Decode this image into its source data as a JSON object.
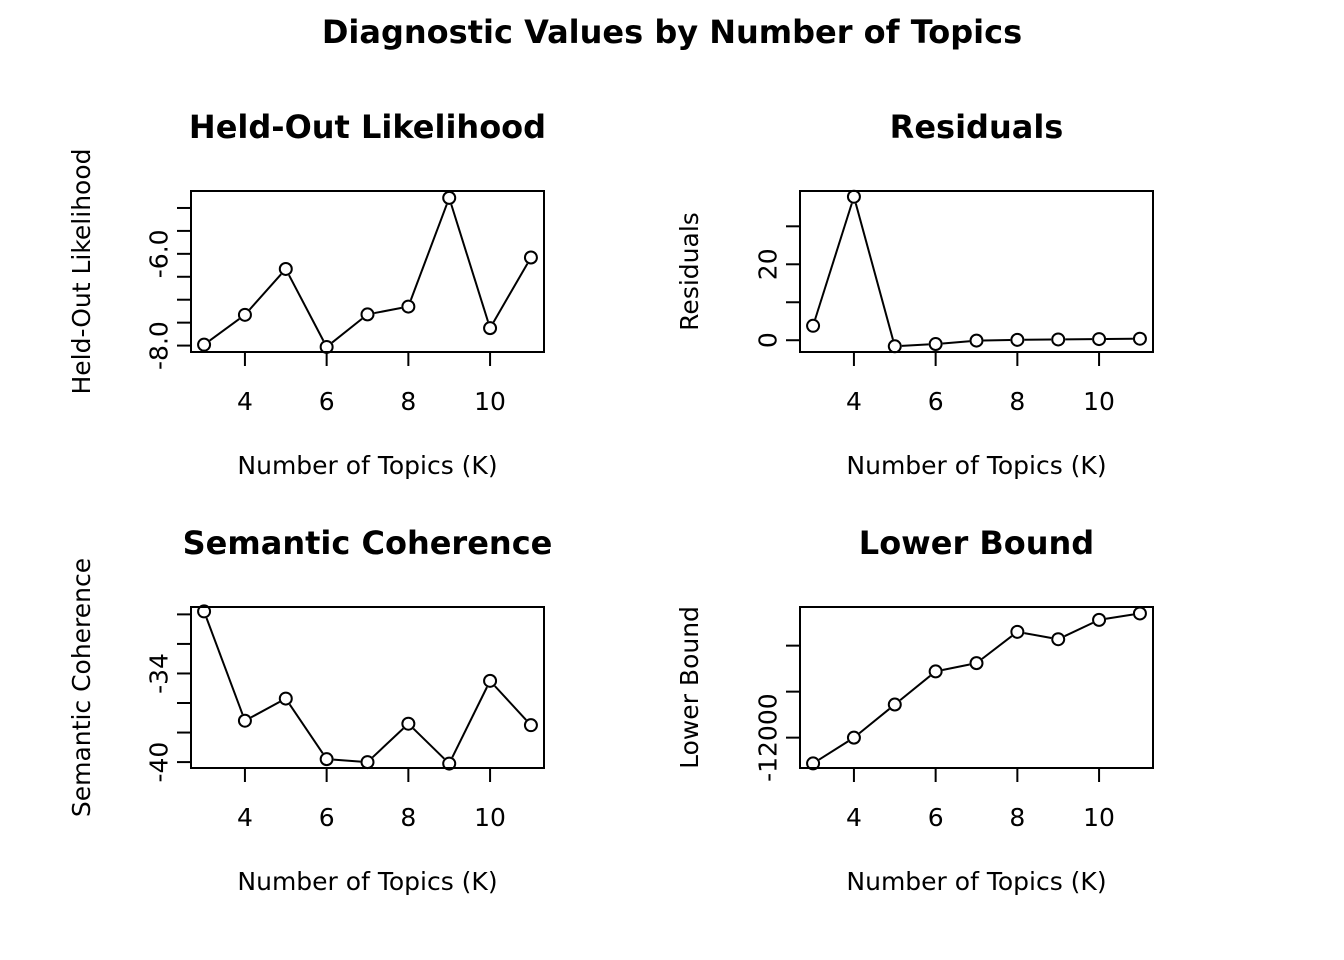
{
  "figure": {
    "title": "Diagnostic Values by Number of Topics"
  },
  "chart_data": [
    {
      "type": "line",
      "title": "Held-Out Likelihood",
      "xlabel": "Number of Topics (K)",
      "ylabel": "Held-Out Likelihood",
      "x": [
        3,
        4,
        5,
        6,
        7,
        8,
        9,
        10,
        11
      ],
      "values": [
        -7.98,
        -7.33,
        -6.33,
        -8.03,
        -7.32,
        -7.15,
        -4.78,
        -7.62,
        -6.08
      ],
      "xlim": [
        2.68,
        11.32
      ],
      "ylim": [
        -8.14,
        -4.63
      ],
      "xticks": [
        4,
        6,
        8,
        10
      ],
      "xtick_labels": [
        "4",
        "6",
        "8",
        "10"
      ],
      "yticks": [
        -8.0,
        -7.5,
        -7.0,
        -6.5,
        -6.0,
        -5.5,
        -5.0
      ],
      "ytick_labels": [
        "-8.0",
        "",
        "",
        "",
        "-6.0",
        "",
        ""
      ],
      "marker": "open-circle",
      "grid": false
    },
    {
      "type": "line",
      "title": "Residuals",
      "xlabel": "Number of Topics (K)",
      "ylabel": "Residuals",
      "x": [
        3,
        4,
        5,
        6,
        7,
        8,
        9,
        10,
        11
      ],
      "values": [
        3.8,
        37.8,
        -1.6,
        -1.0,
        -0.1,
        0.1,
        0.2,
        0.3,
        0.4
      ],
      "xlim": [
        2.68,
        11.32
      ],
      "ylim": [
        -3.1,
        39.3
      ],
      "xticks": [
        4,
        6,
        8,
        10
      ],
      "xtick_labels": [
        "4",
        "6",
        "8",
        "10"
      ],
      "yticks": [
        0,
        10,
        20,
        30
      ],
      "ytick_labels": [
        "0",
        "",
        "20",
        ""
      ],
      "marker": "open-circle",
      "grid": false
    },
    {
      "type": "line",
      "title": "Semantic Coherence",
      "xlabel": "Number of Topics (K)",
      "ylabel": "Semantic Coherence",
      "x": [
        3,
        4,
        5,
        6,
        7,
        8,
        9,
        10,
        11
      ],
      "values": [
        -29.8,
        -37.2,
        -35.7,
        -39.8,
        -40.0,
        -37.4,
        -40.1,
        -34.5,
        -37.5
      ],
      "xlim": [
        2.68,
        11.32
      ],
      "ylim": [
        -40.4,
        -29.5
      ],
      "xticks": [
        4,
        6,
        8,
        10
      ],
      "xtick_labels": [
        "4",
        "6",
        "8",
        "10"
      ],
      "yticks": [
        -40,
        -38,
        -36,
        -34,
        -32,
        -30
      ],
      "ytick_labels": [
        "-40",
        "",
        "",
        "-34",
        "",
        ""
      ],
      "marker": "open-circle",
      "grid": false
    },
    {
      "type": "line",
      "title": "Lower Bound",
      "xlabel": "Number of Topics (K)",
      "ylabel": "Lower Bound",
      "x": [
        3,
        4,
        5,
        6,
        7,
        8,
        9,
        10,
        11
      ],
      "values": [
        -12280,
        -12000,
        -11640,
        -11280,
        -11190,
        -10850,
        -10930,
        -10720,
        -10650
      ],
      "xlim": [
        2.68,
        11.32
      ],
      "ylim": [
        -12330,
        -10580
      ],
      "xticks": [
        4,
        6,
        8,
        10
      ],
      "xtick_labels": [
        "4",
        "6",
        "8",
        "10"
      ],
      "yticks": [
        -12000,
        -11500,
        -11000
      ],
      "ytick_labels": [
        "-12000",
        "",
        ""
      ],
      "marker": "open-circle",
      "grid": false
    }
  ]
}
